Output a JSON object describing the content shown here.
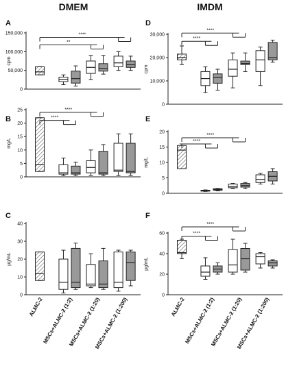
{
  "column_headers": [
    "DMEM",
    "IMDM"
  ],
  "panel_letters": [
    "A",
    "B",
    "C",
    "D",
    "E",
    "F"
  ],
  "x_categories": [
    "ALMC-2",
    "MSCs+ALMC-2 (1:2)",
    "MSCs+ALMC-2 (1:20)",
    "MSCs+ALMC-2 (1:200)"
  ],
  "significance_labels": [
    "****",
    "**"
  ],
  "hatch_color": "#555555",
  "grey_fill": "#999999",
  "chart_data": [
    {
      "type": "box",
      "panel": "A",
      "medium": "DMEM",
      "ylabel": "cpm",
      "ylim": [
        0,
        150000
      ],
      "yticks": [
        "0",
        "50,000",
        "100,000",
        "150,000"
      ],
      "ytick_values": [
        0,
        50000,
        100000,
        150000
      ],
      "boxes": [
        {
          "category": "ALMC-2",
          "fill": "hatched",
          "whisker_low": 38000,
          "q1": 38000,
          "median": 46000,
          "q3": 60000,
          "whisker_high": 60000
        },
        {
          "category": "MSCs+ALMC-2 (1:2)",
          "fill": "white",
          "whisker_low": 12000,
          "q1": 20000,
          "median": 26000,
          "q3": 32000,
          "whisker_high": 38000
        },
        {
          "category": "MSCs+ALMC-2 (1:2)",
          "fill": "grey",
          "whisker_low": 8000,
          "q1": 16000,
          "median": 28000,
          "q3": 48000,
          "whisker_high": 62000
        },
        {
          "category": "MSCs+ALMC-2 (1:20)",
          "fill": "white",
          "whisker_low": 25000,
          "q1": 42000,
          "median": 58000,
          "q3": 75000,
          "whisker_high": 90000
        },
        {
          "category": "MSCs+ALMC-2 (1:20)",
          "fill": "grey",
          "whisker_low": 40000,
          "q1": 48000,
          "median": 55000,
          "q3": 68000,
          "whisker_high": 90000
        },
        {
          "category": "MSCs+ALMC-2 (1:200)",
          "fill": "white",
          "whisker_low": 50000,
          "q1": 60000,
          "median": 70000,
          "q3": 88000,
          "whisker_high": 100000
        },
        {
          "category": "MSCs+ALMC-2 (1:200)",
          "fill": "grey",
          "whisker_low": 50000,
          "q1": 58000,
          "median": 65000,
          "q3": 75000,
          "whisker_high": 88000
        }
      ],
      "brackets": [
        {
          "label": "****",
          "from": "ALMC-2",
          "to": "MSCs+ALMC-2 (1:200)",
          "level": 138000
        },
        {
          "label": "**",
          "from": "ALMC-2",
          "to": "MSCs+ALMC-2 (1:20)",
          "level": 118000
        }
      ]
    },
    {
      "type": "box",
      "panel": "B",
      "medium": "DMEM",
      "ylabel": "mg/L",
      "ylim": [
        0,
        25
      ],
      "yticks": [
        "0",
        "5",
        "10",
        "15",
        "20",
        "25"
      ],
      "ytick_values": [
        0,
        5,
        10,
        15,
        20,
        25
      ],
      "boxes": [
        {
          "category": "ALMC-2",
          "fill": "hatched",
          "whisker_low": 2,
          "q1": 2,
          "median": 4.5,
          "q3": 22,
          "whisker_high": 22
        },
        {
          "category": "MSCs+ALMC-2 (1:2)",
          "fill": "white",
          "whisker_low": 0.5,
          "q1": 1,
          "median": 1.5,
          "q3": 4.5,
          "whisker_high": 7
        },
        {
          "category": "MSCs+ALMC-2 (1:2)",
          "fill": "grey",
          "whisker_low": 0.5,
          "q1": 1,
          "median": 1.5,
          "q3": 4,
          "whisker_high": 5.5
        },
        {
          "category": "MSCs+ALMC-2 (1:20)",
          "fill": "white",
          "whisker_low": 0.5,
          "q1": 1.5,
          "median": 3.5,
          "q3": 6,
          "whisker_high": 10
        },
        {
          "category": "MSCs+ALMC-2 (1:20)",
          "fill": "grey",
          "whisker_low": 0.5,
          "q1": 1,
          "median": 1.5,
          "q3": 9.5,
          "whisker_high": 12
        },
        {
          "category": "MSCs+ALMC-2 (1:200)",
          "fill": "white",
          "whisker_low": 0.5,
          "q1": 2,
          "median": 2.5,
          "q3": 12.5,
          "whisker_high": 16
        },
        {
          "category": "MSCs+ALMC-2 (1:200)",
          "fill": "grey",
          "whisker_low": 0.5,
          "q1": 1.5,
          "median": 2,
          "q3": 12.5,
          "whisker_high": 16
        }
      ],
      "brackets": [
        {
          "label": "****",
          "from": "ALMC-2",
          "to": "MSCs+ALMC-2 (1:20)",
          "level": 24
        },
        {
          "label": "****",
          "from": "ALMC-2",
          "to": "MSCs+ALMC-2 (1:2)",
          "level": 21
        }
      ]
    },
    {
      "type": "box",
      "panel": "C",
      "medium": "DMEM",
      "ylabel": "µg/mL",
      "ylim": [
        0,
        40
      ],
      "yticks": [
        "0",
        "10",
        "20",
        "30",
        "40"
      ],
      "ytick_values": [
        0,
        10,
        20,
        30,
        40
      ],
      "boxes": [
        {
          "category": "ALMC-2",
          "fill": "hatched",
          "whisker_low": 8,
          "q1": 8,
          "median": 12,
          "q3": 24,
          "whisker_high": 24
        },
        {
          "category": "MSCs+ALMC-2 (1:2)",
          "fill": "white",
          "whisker_low": 1,
          "q1": 3,
          "median": 7,
          "q3": 20,
          "whisker_high": 25
        },
        {
          "category": "MSCs+ALMC-2 (1:2)",
          "fill": "grey",
          "whisker_low": 3,
          "q1": 4,
          "median": 7,
          "q3": 26,
          "whisker_high": 29
        },
        {
          "category": "MSCs+ALMC-2 (1:20)",
          "fill": "white",
          "whisker_low": 4,
          "q1": 5,
          "median": 6,
          "q3": 17,
          "whisker_high": 23
        },
        {
          "category": "MSCs+ALMC-2 (1:20)",
          "fill": "grey",
          "whisker_low": 3,
          "q1": 4,
          "median": 6,
          "q3": 19,
          "whisker_high": 26
        },
        {
          "category": "MSCs+ALMC-2 (1:200)",
          "fill": "white",
          "whisker_low": 2,
          "q1": 4,
          "median": 7,
          "q3": 24,
          "whisker_high": 25
        },
        {
          "category": "MSCs+ALMC-2 (1:200)",
          "fill": "grey",
          "whisker_low": 5,
          "q1": 8,
          "median": 18,
          "q3": 24,
          "whisker_high": 25
        }
      ],
      "brackets": []
    },
    {
      "type": "box",
      "panel": "D",
      "medium": "IMDM",
      "ylabel": "cpm",
      "ylim": [
        0,
        30000
      ],
      "yticks": [
        "0",
        "10,000",
        "20,000",
        "30,000"
      ],
      "ytick_values": [
        0,
        10000,
        20000,
        30000
      ],
      "boxes": [
        {
          "category": "ALMC-2",
          "fill": "hatched",
          "whisker_low": 17000,
          "q1": 19000,
          "median": 20000,
          "q3": 21500,
          "whisker_high": 25000
        },
        {
          "category": "MSCs+ALMC-2 (1:2)",
          "fill": "white",
          "whisker_low": 5000,
          "q1": 8000,
          "median": 11000,
          "q3": 14000,
          "whisker_high": 16000
        },
        {
          "category": "MSCs+ALMC-2 (1:2)",
          "fill": "grey",
          "whisker_low": 6000,
          "q1": 9000,
          "median": 11500,
          "q3": 13000,
          "whisker_high": 15000
        },
        {
          "category": "MSCs+ALMC-2 (1:20)",
          "fill": "white",
          "whisker_low": 7000,
          "q1": 12000,
          "median": 15000,
          "q3": 19000,
          "whisker_high": 22000
        },
        {
          "category": "MSCs+ALMC-2 (1:20)",
          "fill": "grey",
          "whisker_low": 14000,
          "q1": 17000,
          "median": 17500,
          "q3": 18500,
          "whisker_high": 22000
        },
        {
          "category": "MSCs+ALMC-2 (1:200)",
          "fill": "white",
          "whisker_low": 8000,
          "q1": 14000,
          "median": 19000,
          "q3": 23000,
          "whisker_high": 24500
        },
        {
          "category": "MSCs+ALMC-2 (1:200)",
          "fill": "grey",
          "whisker_low": 18000,
          "q1": 19000,
          "median": 20000,
          "q3": 26500,
          "whisker_high": 27500
        }
      ],
      "brackets": [
        {
          "label": "****",
          "from": "ALMC-2",
          "to": "MSCs+ALMC-2 (1:20)",
          "level": 30500
        },
        {
          "label": "****",
          "from": "ALMC-2",
          "to": "MSCs+ALMC-2 (1:2)",
          "level": 27000
        }
      ]
    },
    {
      "type": "box",
      "panel": "E",
      "medium": "IMDM",
      "ylabel": "mg/L",
      "ylim": [
        0,
        20
      ],
      "yticks": [
        "0",
        "5",
        "10",
        "15",
        "20"
      ],
      "ytick_values": [
        0,
        5,
        10,
        15,
        20
      ],
      "boxes": [
        {
          "category": "ALMC-2",
          "fill": "hatched",
          "whisker_low": 8,
          "q1": 8,
          "median": 14,
          "q3": 15.5,
          "whisker_high": 16
        },
        {
          "category": "MSCs+ALMC-2 (1:2)",
          "fill": "white",
          "whisker_low": 0.6,
          "q1": 0.7,
          "median": 0.9,
          "q3": 1,
          "whisker_high": 1.1
        },
        {
          "category": "MSCs+ALMC-2 (1:2)",
          "fill": "grey",
          "whisker_low": 0.8,
          "q1": 1,
          "median": 1.2,
          "q3": 1.5,
          "whisker_high": 1.6
        },
        {
          "category": "MSCs+ALMC-2 (1:20)",
          "fill": "white",
          "whisker_low": 1.5,
          "q1": 1.8,
          "median": 2.2,
          "q3": 3,
          "whisker_high": 3.2
        },
        {
          "category": "MSCs+ALMC-2 (1:20)",
          "fill": "grey",
          "whisker_low": 1.5,
          "q1": 2,
          "median": 2.5,
          "q3": 3.2,
          "whisker_high": 3.5
        },
        {
          "category": "MSCs+ALMC-2 (1:200)",
          "fill": "white",
          "whisker_low": 3,
          "q1": 3.5,
          "median": 4.5,
          "q3": 6,
          "whisker_high": 6.5
        },
        {
          "category": "MSCs+ALMC-2 (1:200)",
          "fill": "grey",
          "whisker_low": 3,
          "q1": 4,
          "median": 5.5,
          "q3": 7,
          "whisker_high": 8
        }
      ],
      "brackets": [
        {
          "label": "****",
          "from": "ALMC-2",
          "to": "MSCs+ALMC-2 (1:20)",
          "level": 18
        },
        {
          "label": "****",
          "from": "ALMC-2",
          "to": "MSCs+ALMC-2 (1:2)",
          "level": 16
        }
      ]
    },
    {
      "type": "box",
      "panel": "F",
      "medium": "IMDM",
      "ylabel": "µg/mL",
      "ylim": [
        0,
        60
      ],
      "yticks": [
        "0",
        "20",
        "40",
        "60"
      ],
      "ytick_values": [
        0,
        20,
        40,
        60
      ],
      "boxes": [
        {
          "category": "ALMC-2",
          "fill": "hatched",
          "whisker_low": 35,
          "q1": 40,
          "median": 41,
          "q3": 53,
          "whisker_high": 54
        },
        {
          "category": "MSCs+ALMC-2 (1:2)",
          "fill": "white",
          "whisker_low": 15,
          "q1": 18,
          "median": 22,
          "q3": 28,
          "whisker_high": 36
        },
        {
          "category": "MSCs+ALMC-2 (1:2)",
          "fill": "grey",
          "whisker_low": 20,
          "q1": 22,
          "median": 25,
          "q3": 28,
          "whisker_high": 31
        },
        {
          "category": "MSCs+ALMC-2 (1:20)",
          "fill": "white",
          "whisker_low": 20,
          "q1": 22,
          "median": 29,
          "q3": 44,
          "whisker_high": 54
        },
        {
          "category": "MSCs+ALMC-2 (1:20)",
          "fill": "grey",
          "whisker_low": 22,
          "q1": 24,
          "median": 35,
          "q3": 45,
          "whisker_high": 50
        },
        {
          "category": "MSCs+ALMC-2 (1:200)",
          "fill": "white",
          "whisker_low": 26,
          "q1": 30,
          "median": 37,
          "q3": 40,
          "whisker_high": 41
        },
        {
          "category": "MSCs+ALMC-2 (1:200)",
          "fill": "grey",
          "whisker_low": 26,
          "q1": 28,
          "median": 31,
          "q3": 33,
          "whisker_high": 34
        }
      ],
      "brackets": [
        {
          "label": "****",
          "from": "ALMC-2",
          "to": "MSCs+ALMC-2 (1:20)",
          "level": 66
        },
        {
          "label": "****",
          "from": "ALMC-2",
          "to": "MSCs+ALMC-2 (1:2)",
          "level": 57
        }
      ]
    }
  ]
}
